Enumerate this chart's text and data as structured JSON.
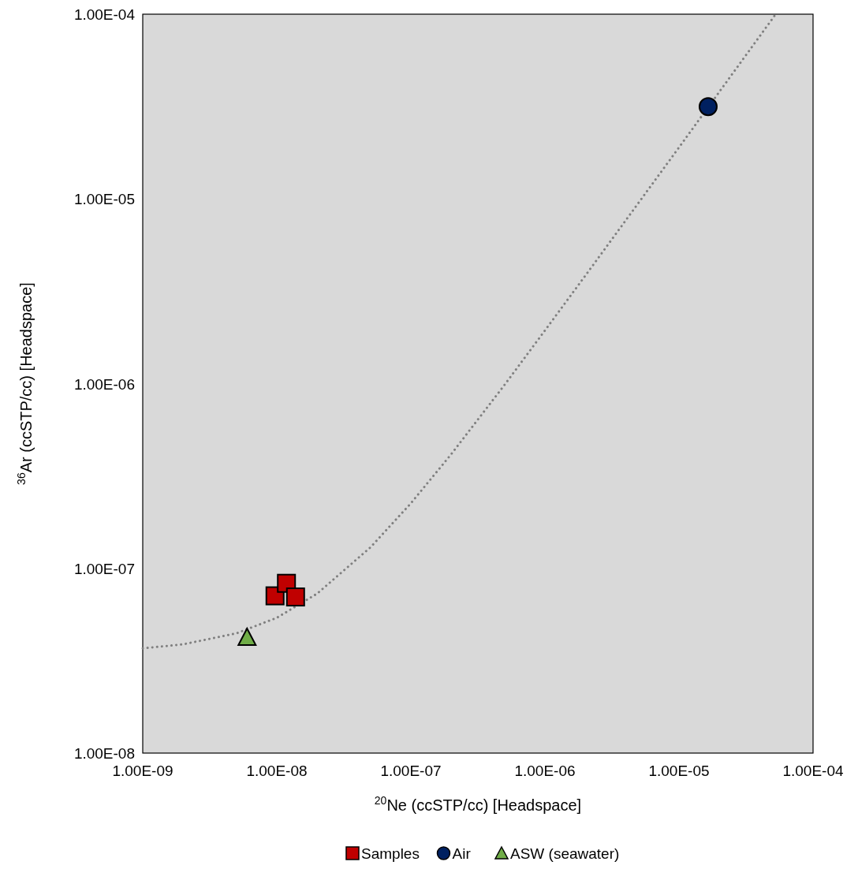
{
  "chart_data": {
    "type": "scatter",
    "xlabel": "$^{20}$Ne (ccSTP/cc) [Headspace]",
    "ylabel": "$^{36}$Ar (ccSTP/cc) [Headspace]",
    "log": "xy",
    "xlim": [
      1e-09,
      0.0001
    ],
    "ylim": [
      1e-08,
      0.0001
    ],
    "xticks": [
      {
        "value": 1e-09,
        "label": "1.00E-09"
      },
      {
        "value": 1e-08,
        "label": "1.00E-08"
      },
      {
        "value": 1e-07,
        "label": "1.00E-07"
      },
      {
        "value": 1e-06,
        "label": "1.00E-06"
      },
      {
        "value": 1e-05,
        "label": "1.00E-05"
      },
      {
        "value": 0.0001,
        "label": "1.00E-04"
      }
    ],
    "yticks": [
      {
        "value": 1e-08,
        "label": "1.00E-08"
      },
      {
        "value": 1e-07,
        "label": "1.00E-07"
      },
      {
        "value": 1e-06,
        "label": "1.00E-06"
      },
      {
        "value": 1e-05,
        "label": "1.00E-05"
      },
      {
        "value": 0.0001,
        "label": "1.00E-04"
      }
    ],
    "grid": false,
    "legend": "bottom",
    "series": [
      {
        "type": "line",
        "color": "#808080",
        "line_style": "dotted",
        "marker": "none",
        "x": [
          1e-09,
          2e-09,
          5e-09,
          1e-08,
          2e-08,
          5e-08,
          1e-07,
          2e-07,
          5e-07,
          1e-06,
          2e-06,
          5e-06,
          1e-05,
          2e-05,
          5e-05,
          5.26e-05
        ],
        "values": [
          3.69e-08,
          3.88e-08,
          4.45e-08,
          5.4e-08,
          7.3e-08,
          1.3e-07,
          2.25e-07,
          4.15e-07,
          9.85e-07,
          1.94e-06,
          3.84e-06,
          9.54e-06,
          1.9e-05,
          3.8e-05,
          9.5e-05,
          0.0001
        ]
      },
      {
        "name": "Samples",
        "color": "#c00000",
        "marker": "square",
        "x": [
          9.7e-09,
          1.18e-08,
          1.38e-08
        ],
        "values": [
          7.1e-08,
          8.3e-08,
          7e-08
        ]
      },
      {
        "name": "Air",
        "color": "#002060",
        "marker": "circle",
        "x": [
          1.65e-05
        ],
        "values": [
          3.16e-05
        ]
      },
      {
        "name": "ASW (seawater)",
        "color": "#70ad47",
        "marker": "triangle",
        "x": [
          6e-09
        ],
        "values": [
          4.2e-08
        ]
      }
    ]
  }
}
